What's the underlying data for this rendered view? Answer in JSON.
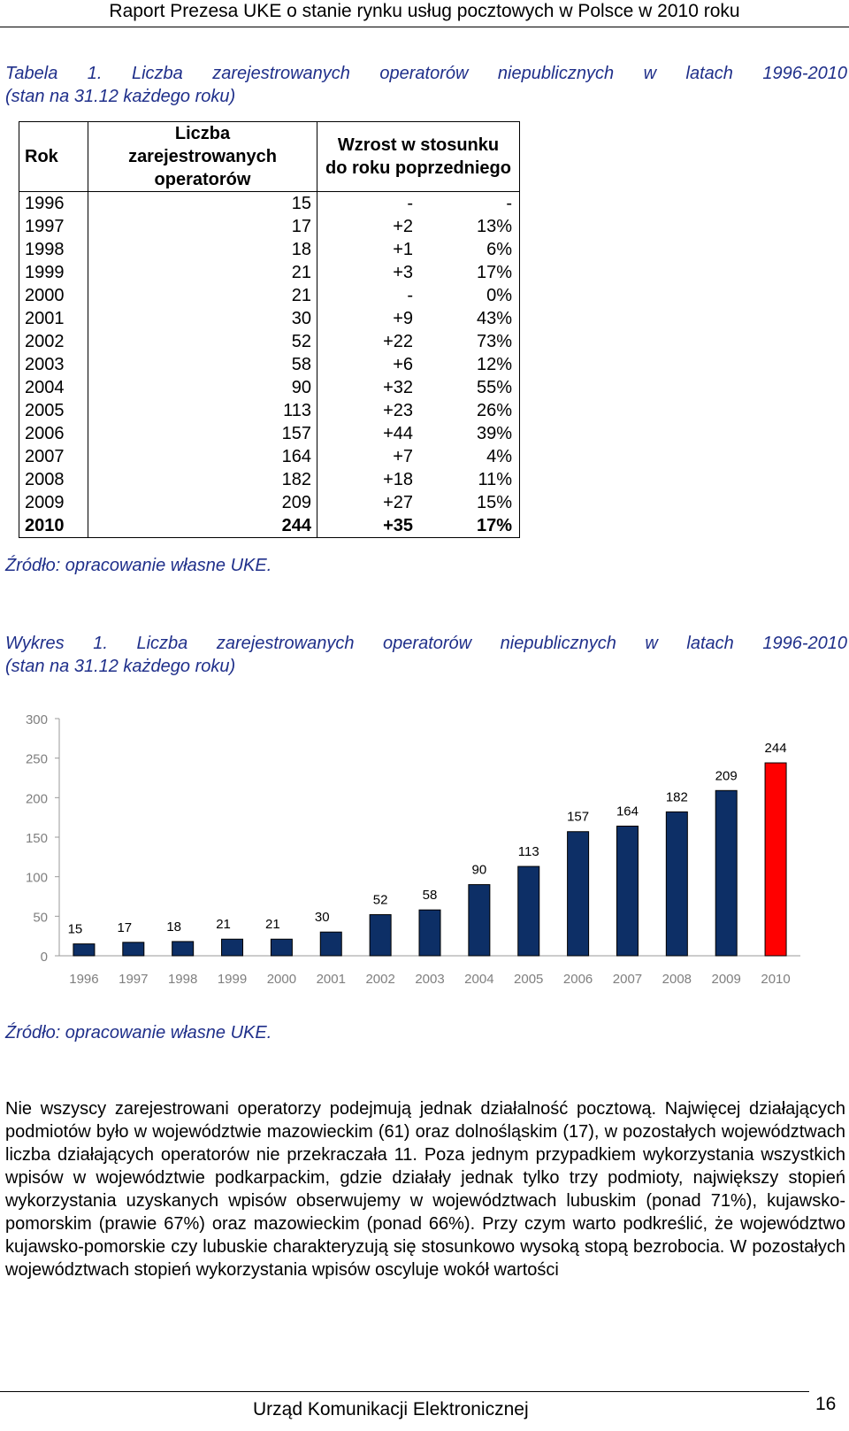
{
  "header": {
    "title": "Raport Prezesa UKE o stanie rynku usług pocztowych w Polsce w 2010 roku"
  },
  "table": {
    "caption_line1": "Tabela 1. Liczba zarejestrowanych operatorów niepublicznych w latach 1996-2010",
    "caption_line2": "(stan na 31.12 każdego roku)",
    "col_year": "Rok",
    "col_count": "Liczba zarejestrowanych operatorów",
    "col_increase": "Wzrost w stosunku do roku poprzedniego",
    "rows": [
      [
        "1996",
        "15",
        "-",
        "-"
      ],
      [
        "1997",
        "17",
        "+2",
        "13%"
      ],
      [
        "1998",
        "18",
        "+1",
        "6%"
      ],
      [
        "1999",
        "21",
        "+3",
        "17%"
      ],
      [
        "2000",
        "21",
        "-",
        "0%"
      ],
      [
        "2001",
        "30",
        "+9",
        "43%"
      ],
      [
        "2002",
        "52",
        "+22",
        "73%"
      ],
      [
        "2003",
        "58",
        "+6",
        "12%"
      ],
      [
        "2004",
        "90",
        "+32",
        "55%"
      ],
      [
        "2005",
        "113",
        "+23",
        "26%"
      ],
      [
        "2006",
        "157",
        "+44",
        "39%"
      ],
      [
        "2007",
        "164",
        "+7",
        "4%"
      ],
      [
        "2008",
        "182",
        "+18",
        "11%"
      ],
      [
        "2009",
        "209",
        "+27",
        "15%"
      ],
      [
        "2010",
        "244",
        "+35",
        "17%"
      ]
    ],
    "source": "Źródło: opracowanie własne UKE."
  },
  "chart_section": {
    "caption_line1": "Wykres 1. Liczba zarejestrowanych operatorów niepublicznych w latach 1996-2010",
    "caption_line2": "(stan na 31.12 każdego roku)",
    "source": "Źródło: opracowanie własne UKE."
  },
  "chart_data": {
    "type": "bar",
    "categories": [
      "1996",
      "1997",
      "1998",
      "1999",
      "2000",
      "2001",
      "2002",
      "2003",
      "2004",
      "2005",
      "2006",
      "2007",
      "2008",
      "2009",
      "2010"
    ],
    "values": [
      15,
      17,
      18,
      21,
      21,
      30,
      52,
      58,
      90,
      113,
      157,
      164,
      182,
      209,
      244
    ],
    "ylim": [
      0,
      300
    ],
    "yticks": [
      0,
      50,
      100,
      150,
      200,
      250,
      300
    ],
    "bar_color": "#0d2f66",
    "highlight_color": "#ff0000",
    "highlight_index": 14,
    "grid": false,
    "data_labels": true
  },
  "body_paragraph": "Nie wszyscy zarejestrowani operatorzy podejmują jednak działalność pocztową. Najwięcej działających podmiotów było w województwie mazowieckim (61) oraz dolnośląskim (17), w pozostałych województwach liczba działających operatorów nie przekraczała 11. Poza jednym przypadkiem wykorzystania wszystkich wpisów w województwie podkarpackim, gdzie działały jednak tylko trzy podmioty, największy stopień wykorzystania uzyskanych wpisów obserwujemy w województwach lubuskim (ponad 71%), kujawsko-pomorskim (prawie 67%) oraz mazowieckim (ponad 66%). Przy czym warto podkreślić, że województwo kujawsko-pomorskie czy lubuskie charakteryzują się stosunkowo wysoką stopą bezrobocia. W pozostałych województwach stopień wykorzystania wpisów oscyluje wokół wartości",
  "footer": {
    "org": "Urząd Komunikacji Elektronicznej",
    "page": "16"
  }
}
